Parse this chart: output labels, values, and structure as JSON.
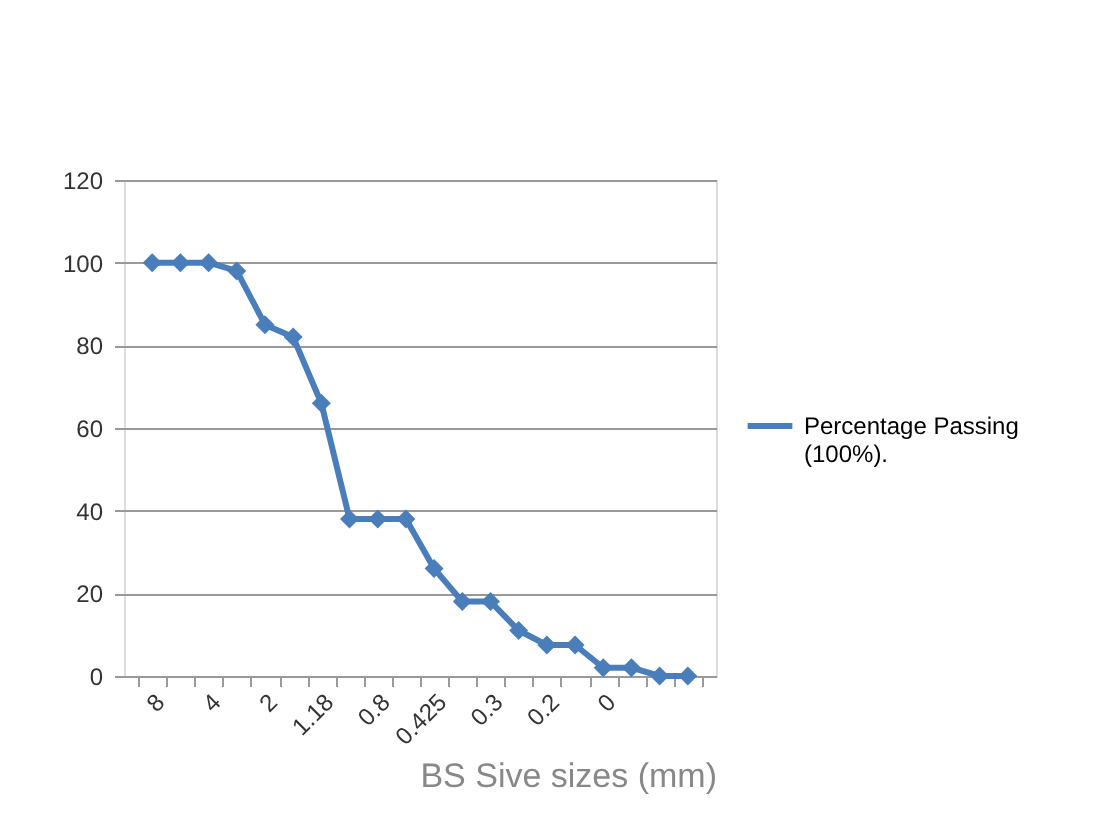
{
  "chart_data": {
    "type": "line",
    "xlabel": "BS Sive sizes (mm)",
    "categories": [
      "8",
      null,
      "4",
      null,
      "2",
      null,
      "1.18",
      null,
      "0.8",
      null,
      "0.425",
      null,
      "0.3",
      null,
      "0.2",
      null,
      "0",
      null,
      null,
      null
    ],
    "series": [
      {
        "name": "Percentage Passing (100%).",
        "color": "#4a7ebb",
        "values": [
          100,
          100,
          100,
          98,
          85,
          82,
          66,
          38,
          38,
          38,
          26,
          18,
          18,
          11,
          7.5,
          7.5,
          2,
          2,
          0,
          0
        ]
      }
    ],
    "ylim": [
      0,
      120
    ],
    "yticks": [
      0,
      20,
      40,
      60,
      80,
      100,
      120
    ],
    "grid": "y",
    "legend": "right",
    "marker": "diamond",
    "line_style": "solid"
  }
}
